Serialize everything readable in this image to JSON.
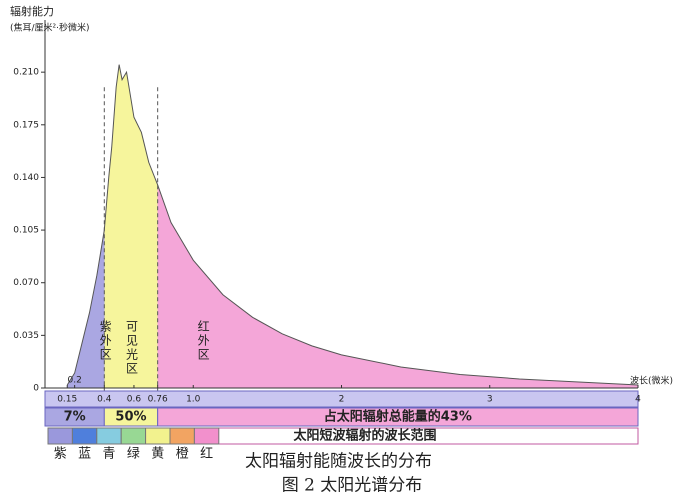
{
  "chart_data": {
    "type": "area",
    "y_label": "辐射能力",
    "y_unit": "(焦耳/厘米²·秒微米)",
    "x_label": "波长(微米)",
    "x": [
      0.15,
      0.2,
      0.25,
      0.3,
      0.35,
      0.4,
      0.43,
      0.45,
      0.48,
      0.5,
      0.52,
      0.55,
      0.6,
      0.65,
      0.7,
      0.76,
      0.85,
      1.0,
      1.2,
      1.4,
      1.6,
      1.8,
      2.0,
      2.4,
      2.8,
      3.2,
      3.6,
      4.0
    ],
    "series": [
      {
        "values": [
          0.002,
          0.01,
          0.03,
          0.05,
          0.075,
          0.105,
          0.14,
          0.16,
          0.2,
          0.215,
          0.205,
          0.21,
          0.18,
          0.17,
          0.15,
          0.135,
          0.11,
          0.085,
          0.062,
          0.047,
          0.036,
          0.028,
          0.022,
          0.014,
          0.009,
          0.006,
          0.004,
          0.002
        ],
        "color": "#555555"
      }
    ],
    "xlim": [
      0,
      4
    ],
    "ylim": [
      0,
      0.25
    ],
    "xticks": [
      0.15,
      0.2,
      0.4,
      0.6,
      0.76,
      {
        "value": 1,
        "label": "1.0"
      },
      2,
      3,
      4
    ],
    "yticks": [
      0,
      0.035,
      {
        "value": 0.07,
        "label": "0.070"
      },
      0.105,
      {
        "value": 0.14,
        "label": "0.140"
      },
      0.175,
      {
        "value": 0.21,
        "label": "0.210"
      }
    ],
    "regions": [
      {
        "label": "紫外区",
        "from": 0,
        "to": 0.4,
        "color": "#aaa7e2"
      },
      {
        "label": "可见光区",
        "from": 0.4,
        "to": 0.76,
        "color": "#f6f59c"
      },
      {
        "label": "红外区",
        "from": 0.76,
        "to": 4,
        "color": "#f4a6d8"
      }
    ],
    "energy_shares": {
      "values": [
        7,
        50,
        43
      ],
      "value_labels": [
        "7%",
        "50%",
        "占太阳辐射总能量的43%"
      ]
    },
    "short_wave_range": "太阳短波辐射的波长范围",
    "spectrum": {
      "labels": [
        "紫",
        "蓝",
        "青",
        "绿",
        "黄",
        "橙",
        "红"
      ],
      "colors": [
        "#9a98dc",
        "#4f7fdc",
        "#86cce0",
        "#98d894",
        "#f2f28e",
        "#f2a462",
        "#f290cc"
      ]
    },
    "caption": "太阳辐射能随波长的分布",
    "figure_caption": "图 2 太阳光谱分布"
  }
}
